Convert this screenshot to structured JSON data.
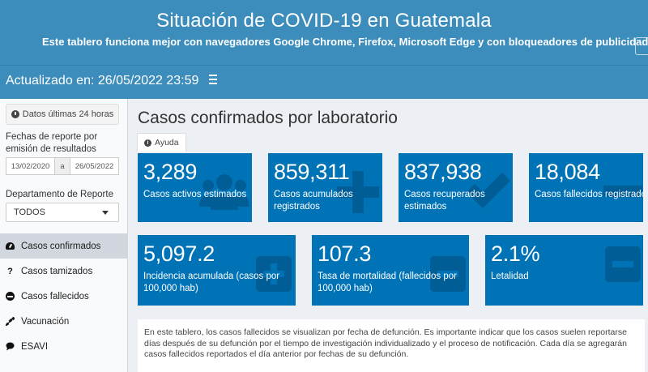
{
  "header": {
    "title": "Situación de COVID-19 en Guatemala",
    "subtitle": "Este tablero funciona mejor con navegadores Google Chrome, Firefox, Microsoft Edge y con bloqueadores de publicidad desactivados"
  },
  "navbar": {
    "updated": "Actualizado en: 26/05/2022 23:59"
  },
  "sidebar": {
    "last24_button": "Datos últimas 24 horas",
    "dates_label": "Fechas de reporte por emisión de resultados",
    "date_start": "13/02/2020",
    "date_sep": "a",
    "date_end": "26/05/2022",
    "dept_label": "Departamento de Reporte",
    "dept_value": "TODOS",
    "menu": [
      {
        "label": "Casos confirmados",
        "icon": "dashboard-icon"
      },
      {
        "label": "Casos tamizados",
        "icon": "question-icon"
      },
      {
        "label": "Casos fallecidos",
        "icon": "minus-circle-icon"
      },
      {
        "label": "Vacunación",
        "icon": "syringe-icon"
      },
      {
        "label": "ESAVI",
        "icon": "comment-icon"
      }
    ]
  },
  "main": {
    "title": "Casos confirmados por laboratorio",
    "help_tab": "Ayuda",
    "boxes_row1": [
      {
        "value": "3,289",
        "label": "Casos activos estimados",
        "icon": "users-icon"
      },
      {
        "value": "859,311",
        "label": "Casos acumulados registrados",
        "icon": "plus-icon"
      },
      {
        "value": "837,938",
        "label": "Casos recuperados estimados",
        "icon": "check-icon"
      },
      {
        "value": "18,084",
        "label": "Casos fallecidos registrados",
        "icon": "minus-icon"
      }
    ],
    "boxes_row2": [
      {
        "value": "5,097.2",
        "label": "Incidencia acumulada (casos por 100,000 hab)",
        "icon": "plus-square-icon"
      },
      {
        "value": "107.3",
        "label": "Tasa de mortalidad (fallecidos por 100,000 hab)",
        "icon": "minus-square-icon"
      },
      {
        "value": "2.1%",
        "label": "Letalidad",
        "icon": "minus-square-icon"
      }
    ],
    "notice": "En este tablero, los casos fallecidos se visualizan por fecha de defunción. Es importante indicar que los casos suelen reportarse días después de su defunción por el tiempo de investigación individualizado y el proceso de notificación. Cada día se agregarán casos fallecidos reportados el día anterior por fechas de su defunción."
  },
  "colors": {
    "header": "#3c8dbc",
    "box": "#0073b7",
    "sidebar_active": "#d2d6de"
  }
}
